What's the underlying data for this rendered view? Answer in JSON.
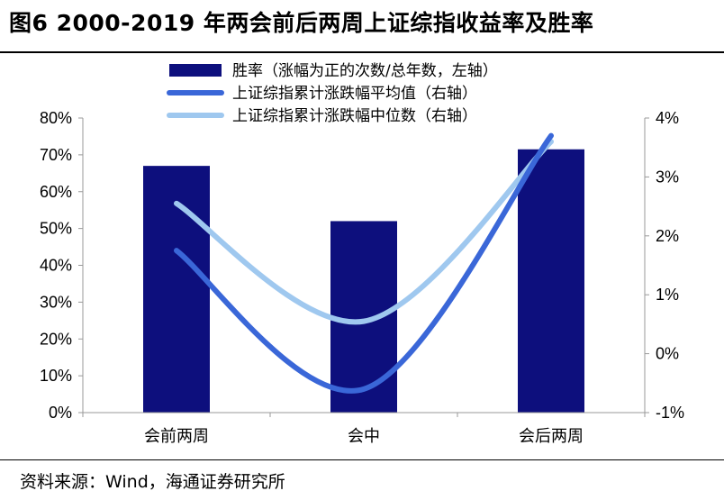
{
  "figure": {
    "title": "图6   2000-2019 年两会前后两周上证综指收益率及胜率",
    "source": "资料来源：Wind，海通证券研究所"
  },
  "colors": {
    "bar": "#0d0f7d",
    "mean_line": "#3a67d8",
    "median_line": "#9fc8ef",
    "axis": "#999999"
  },
  "chart_data": {
    "type": "bar",
    "categories": [
      "会前两周",
      "会中",
      "会后两周"
    ],
    "left_ticks": [
      "80%",
      "70%",
      "60%",
      "50%",
      "40%",
      "30%",
      "20%",
      "10%",
      "0%"
    ],
    "right_ticks": [
      "4%",
      "3%",
      "2%",
      "1%",
      "0%",
      "-1%"
    ],
    "ylim_left": [
      0,
      80
    ],
    "ylim_right": [
      -1,
      4
    ],
    "legend_position": "top",
    "series": [
      {
        "name": "胜率（涨幅为正的次数/总年数，左轴）",
        "type": "bar",
        "axis": "left",
        "unit": "%",
        "values": [
          67,
          52,
          71.5
        ]
      },
      {
        "name": "上证综指累计涨跌幅平均值（右轴）",
        "type": "line",
        "axis": "right",
        "unit": "%",
        "values": [
          1.75,
          -0.6,
          3.7
        ]
      },
      {
        "name": "上证综指累计涨跌幅中位数（右轴）",
        "type": "line",
        "axis": "right",
        "unit": "%",
        "values": [
          2.55,
          0.55,
          3.6
        ]
      }
    ]
  }
}
